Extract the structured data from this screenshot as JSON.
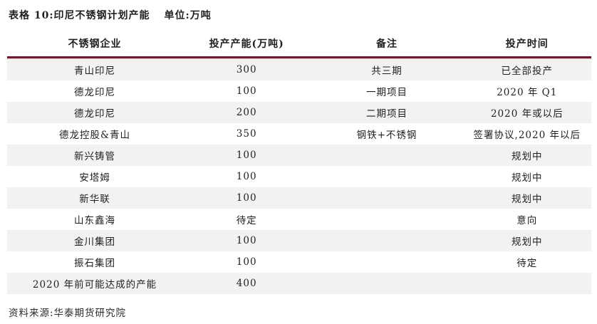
{
  "page": {
    "title": "表格 10:印尼不锈钢计划产能",
    "unit_label": "单位:万吨",
    "source": "资料来源:华泰期货研究院"
  },
  "colors": {
    "accent_rule": "#6e1d30",
    "row_alt_background": "#f2f2f1",
    "text": "#1f1f1f"
  },
  "table": {
    "columns": [
      "不锈钢企业",
      "投产产能(万吨)",
      "备注",
      "投产时间"
    ],
    "rows": [
      {
        "company": "青山印尼",
        "capacity": "300",
        "remark": "共三期",
        "time": "已全部投产"
      },
      {
        "company": "德龙印尼",
        "capacity": "100",
        "remark": "一期项目",
        "time": "2020 年 Q1"
      },
      {
        "company": "德龙印尼",
        "capacity": "200",
        "remark": "二期项目",
        "time": "2020 年或以后"
      },
      {
        "company": "德龙控股&青山",
        "capacity": "350",
        "remark": "钢铁+不锈钢",
        "time": "签署协议,2020 年以后"
      },
      {
        "company": "新兴铸管",
        "capacity": "100",
        "remark": "",
        "time": "规划中"
      },
      {
        "company": "安塔姆",
        "capacity": "100",
        "remark": "",
        "time": "规划中"
      },
      {
        "company": "新华联",
        "capacity": "100",
        "remark": "",
        "time": "规划中"
      },
      {
        "company": "山东鑫海",
        "capacity": "待定",
        "remark": "",
        "time": "意向"
      },
      {
        "company": "金川集团",
        "capacity": "100",
        "remark": "",
        "time": "规划中"
      },
      {
        "company": "振石集团",
        "capacity": "100",
        "remark": "",
        "time": "待定"
      },
      {
        "company": "2020 年前可能达成的产能",
        "capacity": "400",
        "remark": "",
        "time": ""
      }
    ]
  }
}
